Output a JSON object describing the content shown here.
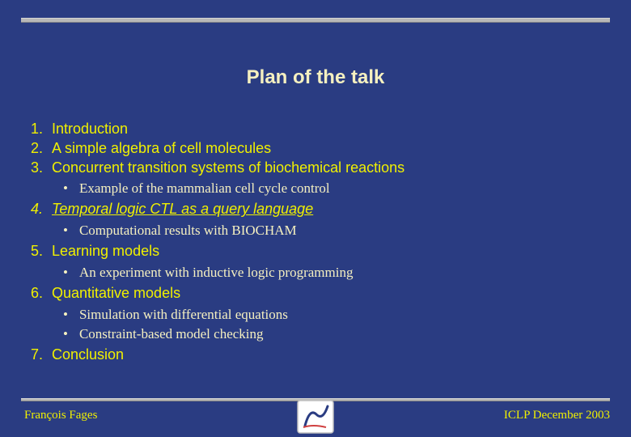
{
  "colors": {
    "background": "#2a3c82",
    "title_text": "#f5f0c0",
    "item_text": "#f0f000",
    "subitem_text": "#f5f0c0",
    "rule_fill": "#b8b8b8",
    "logo_border": "#c0c0c0",
    "logo_bg": "#ffffff",
    "logo_swoosh": "#2a3c82"
  },
  "typography": {
    "title_fontsize": 24,
    "item_fontsize": 18,
    "subitem_fontsize": 17,
    "footer_fontsize": 15,
    "title_font": "Arial",
    "item_font": "Arial",
    "subitem_font": "Georgia"
  },
  "title": "Plan of the talk",
  "items": [
    {
      "num": "1.",
      "text": "Introduction",
      "italic": false,
      "sub": []
    },
    {
      "num": "2.",
      "text": "A simple algebra of cell molecules",
      "italic": false,
      "sub": []
    },
    {
      "num": "3.",
      "text": "Concurrent transition systems of biochemical reactions",
      "italic": false,
      "sub": [
        "Example of the mammalian cell cycle control"
      ]
    },
    {
      "num": "4.",
      "text": "Temporal logic CTL as a query language",
      "italic": true,
      "sub": [
        "Computational results with BIOCHAM"
      ]
    },
    {
      "num": "5.",
      "text": "Learning models",
      "italic": false,
      "sub": [
        "An experiment with inductive logic programming"
      ]
    },
    {
      "num": "6.",
      "text": "Quantitative models",
      "italic": false,
      "sub": [
        "Simulation with differential equations",
        "Constraint-based model checking"
      ]
    },
    {
      "num": "7.",
      "text": "Conclusion",
      "italic": false,
      "sub": []
    }
  ],
  "footer": {
    "left": "François Fages",
    "right": "ICLP December 2003"
  }
}
